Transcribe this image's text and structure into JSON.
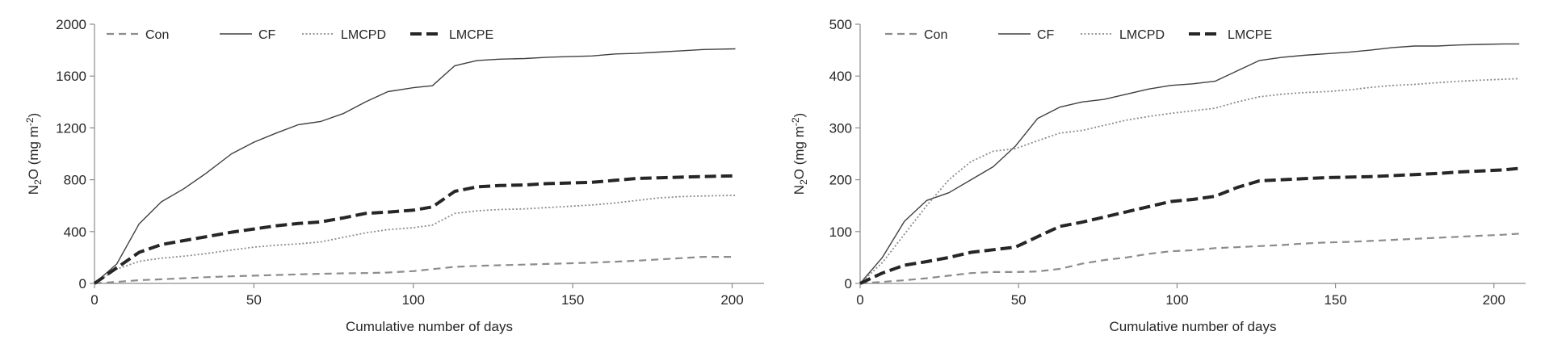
{
  "chart_data": [
    {
      "type": "line",
      "title": "",
      "xlabel": "Cumulative number of days",
      "ylabel_main": "N",
      "ylabel_sub": "2",
      "ylabel_rest": "O (mg m",
      "ylabel_sup": "-2",
      "ylabel_end": ")",
      "xlim": [
        0,
        210
      ],
      "ylim": [
        0,
        2000
      ],
      "xticks": [
        0,
        50,
        100,
        150,
        200
      ],
      "yticks": [
        0,
        400,
        800,
        1200,
        1600,
        2000
      ],
      "grid": false,
      "legend": "top-left",
      "series": [
        {
          "name": "Con",
          "color": "#8c8c8c",
          "style": "dashed",
          "x": [
            0,
            7,
            14,
            21,
            28,
            35,
            43,
            50,
            57,
            64,
            71,
            78,
            85,
            92,
            100,
            106,
            113,
            120,
            127,
            135,
            142,
            149,
            156,
            163,
            170,
            177,
            184,
            191,
            201
          ],
          "y": [
            0,
            12,
            25,
            32,
            40,
            48,
            55,
            60,
            65,
            70,
            74,
            78,
            80,
            84,
            95,
            110,
            128,
            135,
            140,
            145,
            150,
            155,
            160,
            167,
            175,
            185,
            195,
            205,
            205
          ]
        },
        {
          "name": "CF",
          "color": "#404040",
          "style": "solid",
          "x": [
            0,
            7,
            14,
            21,
            28,
            35,
            43,
            50,
            57,
            64,
            71,
            78,
            85,
            92,
            100,
            106,
            113,
            120,
            127,
            135,
            142,
            149,
            156,
            163,
            170,
            177,
            184,
            191,
            201
          ],
          "y": [
            0,
            150,
            460,
            630,
            730,
            850,
            1000,
            1090,
            1160,
            1225,
            1250,
            1310,
            1400,
            1480,
            1510,
            1525,
            1680,
            1720,
            1730,
            1735,
            1745,
            1750,
            1755,
            1770,
            1775,
            1785,
            1795,
            1805,
            1810
          ]
        },
        {
          "name": "LMCPD",
          "color": "#8c8c8c",
          "style": "dotted",
          "x": [
            0,
            7,
            14,
            21,
            28,
            35,
            43,
            50,
            57,
            64,
            71,
            78,
            85,
            92,
            100,
            106,
            113,
            120,
            127,
            135,
            142,
            149,
            156,
            163,
            170,
            177,
            184,
            191,
            201
          ],
          "y": [
            0,
            110,
            170,
            195,
            210,
            230,
            258,
            280,
            295,
            305,
            320,
            355,
            390,
            415,
            430,
            450,
            540,
            560,
            570,
            575,
            585,
            595,
            605,
            620,
            640,
            660,
            670,
            675,
            680
          ]
        },
        {
          "name": "LMCPE",
          "color": "#262626",
          "style": "longdash",
          "x": [
            0,
            7,
            14,
            21,
            28,
            35,
            43,
            50,
            57,
            64,
            71,
            78,
            85,
            92,
            100,
            106,
            113,
            120,
            127,
            135,
            142,
            149,
            156,
            163,
            170,
            177,
            184,
            191,
            201
          ],
          "y": [
            0,
            120,
            240,
            300,
            330,
            360,
            395,
            420,
            445,
            462,
            475,
            505,
            540,
            550,
            565,
            590,
            710,
            745,
            755,
            760,
            770,
            775,
            780,
            795,
            810,
            815,
            820,
            825,
            830
          ]
        }
      ]
    },
    {
      "type": "line",
      "title": "",
      "xlabel": "Cumulative number of days",
      "ylabel_main": "N",
      "ylabel_sub": "2",
      "ylabel_rest": "O (mg m",
      "ylabel_sup": "-2",
      "ylabel_end": ")",
      "xlim": [
        0,
        210
      ],
      "ylim": [
        0,
        500
      ],
      "xticks": [
        0,
        50,
        100,
        150,
        200
      ],
      "yticks": [
        0,
        100,
        200,
        300,
        400,
        500
      ],
      "grid": false,
      "legend": "top-left",
      "series": [
        {
          "name": "Con",
          "color": "#8c8c8c",
          "style": "dashed",
          "x": [
            0,
            7,
            14,
            21,
            28,
            35,
            42,
            49,
            56,
            63,
            70,
            77,
            84,
            91,
            98,
            105,
            112,
            119,
            126,
            133,
            140,
            147,
            154,
            161,
            168,
            175,
            182,
            189,
            196,
            203,
            208
          ],
          "y": [
            0,
            3,
            6,
            10,
            15,
            20,
            22,
            22,
            23,
            28,
            38,
            45,
            50,
            57,
            62,
            64,
            68,
            70,
            72,
            74,
            77,
            79,
            80,
            82,
            84,
            86,
            88,
            90,
            92,
            94,
            96
          ]
        },
        {
          "name": "CF",
          "color": "#404040",
          "style": "solid",
          "x": [
            0,
            7,
            14,
            21,
            28,
            35,
            42,
            49,
            56,
            63,
            70,
            77,
            84,
            91,
            98,
            105,
            112,
            119,
            126,
            133,
            140,
            147,
            154,
            161,
            168,
            175,
            182,
            189,
            196,
            203,
            208
          ],
          "y": [
            0,
            50,
            120,
            160,
            175,
            200,
            225,
            265,
            318,
            340,
            350,
            355,
            365,
            375,
            382,
            385,
            390,
            410,
            430,
            436,
            440,
            443,
            446,
            450,
            455,
            458,
            458,
            460,
            461,
            462,
            462
          ]
        },
        {
          "name": "LMCPD",
          "color": "#8c8c8c",
          "style": "dotted",
          "x": [
            0,
            7,
            14,
            21,
            28,
            35,
            42,
            49,
            56,
            63,
            70,
            77,
            84,
            91,
            98,
            105,
            112,
            119,
            126,
            133,
            140,
            147,
            154,
            161,
            168,
            175,
            182,
            189,
            196,
            203,
            208
          ],
          "y": [
            0,
            40,
            95,
            150,
            200,
            235,
            255,
            260,
            275,
            290,
            295,
            305,
            315,
            322,
            328,
            333,
            338,
            350,
            360,
            365,
            368,
            370,
            373,
            378,
            382,
            384,
            387,
            390,
            392,
            394,
            395
          ]
        },
        {
          "name": "LMCPE",
          "color": "#262626",
          "style": "longdash",
          "x": [
            0,
            7,
            14,
            21,
            28,
            35,
            42,
            49,
            56,
            63,
            70,
            77,
            84,
            91,
            98,
            105,
            112,
            119,
            126,
            133,
            140,
            147,
            154,
            161,
            168,
            175,
            182,
            189,
            196,
            203,
            208
          ],
          "y": [
            0,
            20,
            35,
            42,
            50,
            60,
            65,
            70,
            90,
            110,
            118,
            128,
            138,
            148,
            158,
            162,
            168,
            185,
            198,
            200,
            202,
            204,
            205,
            206,
            208,
            210,
            212,
            215,
            217,
            219,
            222
          ]
        }
      ]
    }
  ]
}
